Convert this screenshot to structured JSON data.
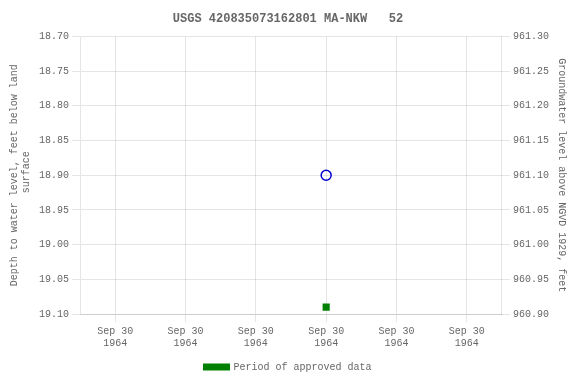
{
  "chart_data": {
    "type": "scatter",
    "title": "USGS 420835073162801 MA-NKW   52",
    "ylabel": "Depth to water level, feet below land\n surface",
    "y2label": "Groundwater level above NGVD 1929, feet",
    "categories": [
      "Sep 30\n1964",
      "Sep 30\n1964",
      "Sep 30\n1964",
      "Sep 30\n1964",
      "Sep 30\n1964",
      "Sep 30\n1964"
    ],
    "series": [
      {
        "color": "#0000cc",
        "marker": "open_circle",
        "values": [
          null,
          null,
          null,
          18.9,
          null,
          null
        ]
      },
      {
        "name": "Period of approved data",
        "color": "#008000",
        "marker": "square",
        "values": [
          null,
          null,
          null,
          19.09,
          null,
          null
        ]
      }
    ],
    "ylim": [
      19.1,
      18.7
    ],
    "yticks": [
      {
        "value": 18.7,
        "label": "18.70"
      },
      18.75,
      {
        "value": 18.8,
        "label": "18.80"
      },
      18.85,
      {
        "value": 18.9,
        "label": "18.90"
      },
      18.95,
      {
        "value": 19,
        "label": "19.00"
      },
      19.05,
      {
        "value": 19.1,
        "label": "19.10"
      }
    ],
    "y2lim": [
      960.9,
      961.3
    ],
    "y2ticks": [
      {
        "value": 961.3,
        "label": "961.30"
      },
      961.25,
      {
        "value": 961.2,
        "label": "961.20"
      },
      961.15,
      {
        "value": 961.1,
        "label": "961.10"
      },
      961.05,
      {
        "value": 961,
        "label": "961.00"
      },
      960.95,
      {
        "value": 960.9,
        "label": "960.90"
      }
    ],
    "grid": true,
    "legend": "bottom"
  }
}
